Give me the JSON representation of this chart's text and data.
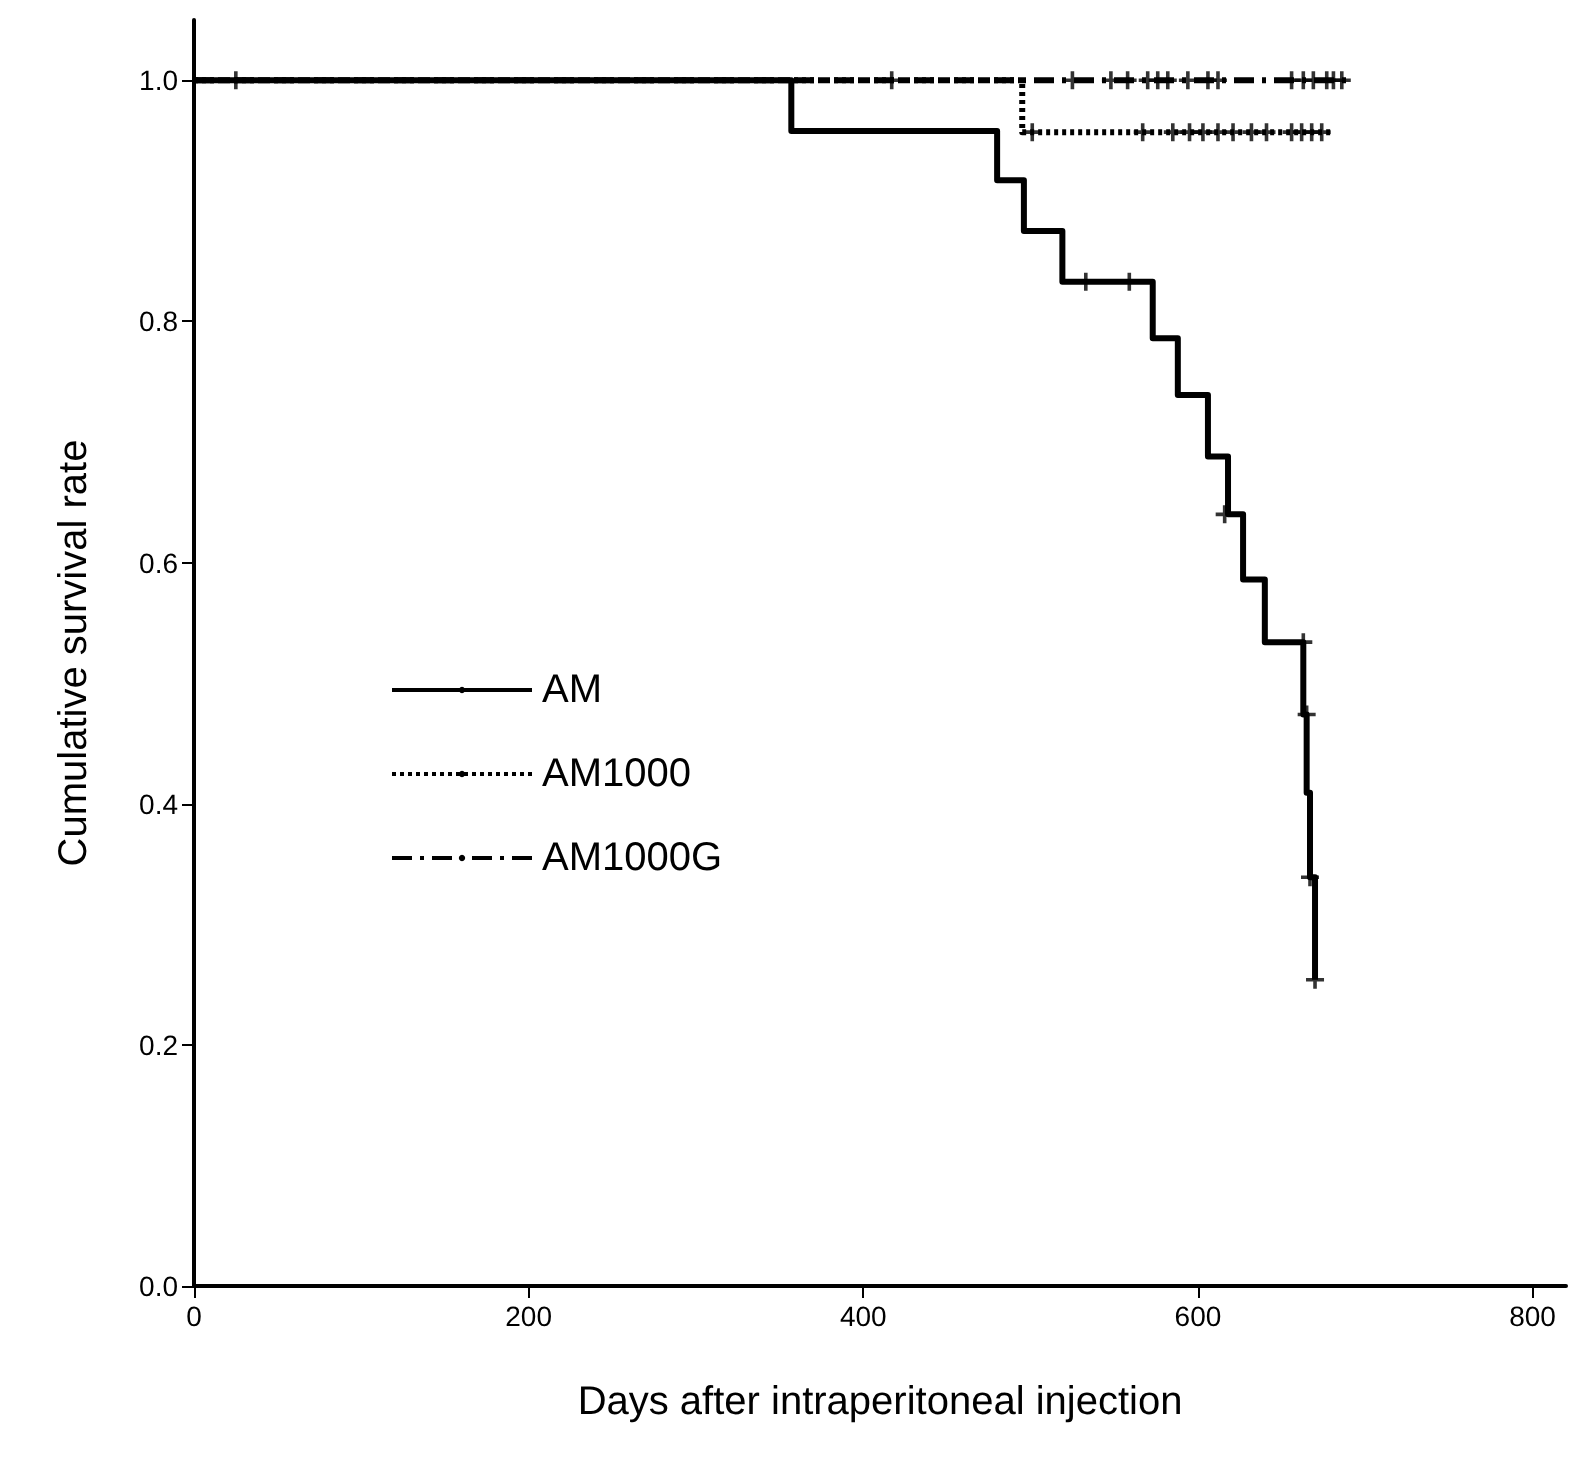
{
  "chart_data": {
    "type": "step",
    "xlabel": "Days after intraperitoneal injection",
    "ylabel": "Cumulative survival rate",
    "xlim": [
      0,
      820
    ],
    "xticks": [
      0,
      200,
      400,
      600,
      800
    ],
    "ylim": [
      0,
      1.05
    ],
    "yticks": [
      {
        "value": 0,
        "label": "0.0"
      },
      0.2,
      0.4,
      0.6,
      0.8,
      {
        "value": 1,
        "label": "1.0"
      }
    ],
    "grid": false,
    "legend": "left",
    "marker": "none",
    "series": [
      {
        "name": "AM",
        "color": "#000000",
        "line_style": "solid",
        "x": [
          0,
          357,
          480,
          496,
          519,
          573,
          588,
          606,
          618,
          627,
          640,
          663,
          665,
          667,
          670
        ],
        "values": [
          1,
          0.958,
          0.917,
          0.875,
          0.833,
          0.786,
          0.739,
          0.688,
          0.64,
          0.586,
          0.534,
          0.474,
          0.409,
          0.339,
          0.254
        ]
      },
      {
        "name": "AM1000",
        "color": "#000000",
        "line_style": "dotted",
        "x": [
          0,
          495,
          681
        ],
        "values": [
          1,
          0.957,
          0.957
        ]
      },
      {
        "name": "AM1000G",
        "color": "#000000",
        "line_style": "dashed",
        "x": [
          0,
          689
        ],
        "values": [
          1,
          1
        ]
      },
      {
        "type": "scatter",
        "marker": "cross",
        "color": "#000000",
        "x": [
          533,
          559,
          616,
          663,
          665,
          667,
          670
        ],
        "values": [
          0.833,
          0.833,
          0.64,
          0.534,
          0.474,
          0.339,
          0.254
        ]
      },
      {
        "type": "scatter",
        "marker": "cross",
        "color": "#000000",
        "x": [
          501,
          567,
          585,
          595,
          603,
          612,
          621,
          632,
          641,
          656,
          662,
          668,
          674
        ],
        "values": [
          0.957,
          0.957,
          0.957,
          0.957,
          0.957,
          0.957,
          0.957,
          0.957,
          0.957,
          0.957,
          0.957,
          0.957,
          0.957
        ]
      },
      {
        "type": "scatter",
        "marker": "cross",
        "color": "#000000",
        "x": [
          25,
          417,
          525,
          548,
          558,
          570,
          576,
          582,
          594,
          606,
          612,
          656,
          663,
          669,
          677,
          681,
          686
        ],
        "values": [
          1,
          1,
          1,
          1,
          1,
          1,
          1,
          1,
          1,
          1,
          1,
          1,
          1,
          1,
          1,
          1,
          1
        ]
      }
    ]
  }
}
